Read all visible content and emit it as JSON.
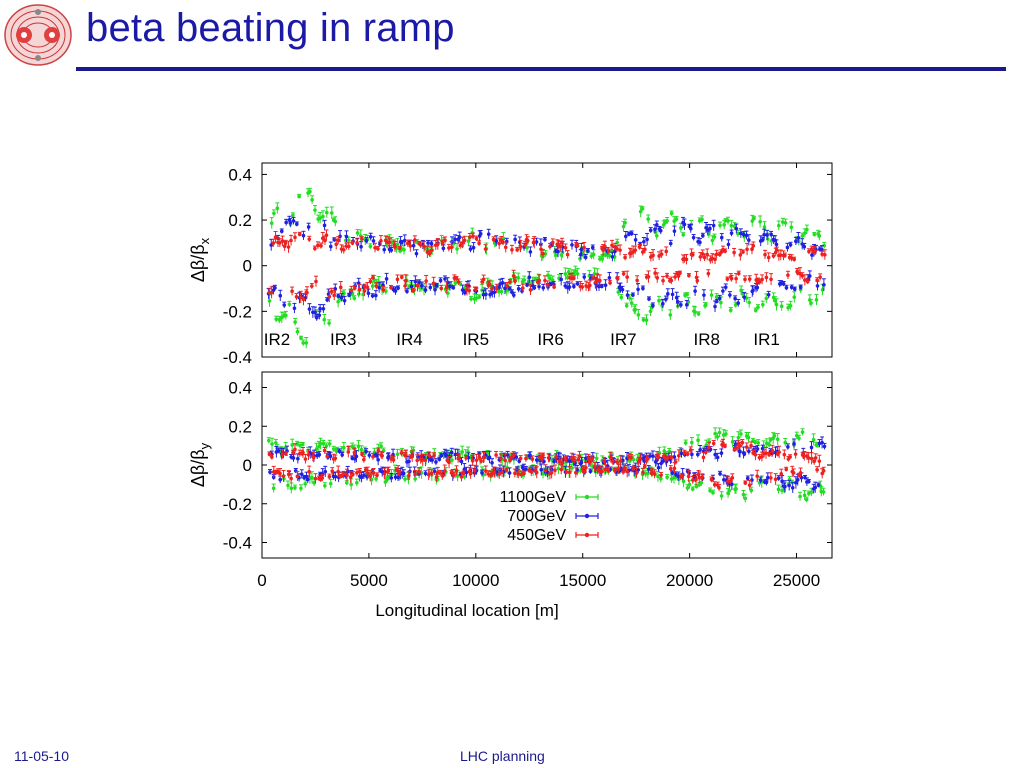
{
  "slide": {
    "title": "beta beating in ramp",
    "footer_left": "11-05-10",
    "footer_center": "LHC planning"
  },
  "colors": {
    "title": "#1a1aa6",
    "rule": "#1a1a8c",
    "series_1100": "#22dd22",
    "series_700": "#2020e0",
    "series_450": "#ee2020"
  },
  "chart_data": {
    "type": "scatter",
    "error_bars": true,
    "shared_x": {
      "label": "Longitudinal location [m]",
      "range": [
        0,
        26659
      ],
      "ticks": [
        0,
        5000,
        10000,
        15000,
        20000,
        25000
      ],
      "tick_labels": [
        "0",
        "5000",
        "10000",
        "15000",
        "20000",
        "25000"
      ]
    },
    "legend": {
      "placement": "bottom-center of lower panel",
      "entries": [
        "1100GeV",
        "700GeV",
        "450GeV"
      ]
    },
    "panels": [
      {
        "id": "x",
        "ylabel_main": "Δβ/β",
        "ylabel_sub": "x",
        "ylim": [
          -0.4,
          0.45
        ],
        "yticks": [
          -0.4,
          -0.2,
          0,
          0.2,
          0.4
        ],
        "ytick_labels": [
          "-0.4",
          "-0.2",
          "0",
          "0.2",
          "0.4"
        ],
        "annotations": [
          {
            "text": "IR2",
            "x": 700
          },
          {
            "text": "IR3",
            "x": 3800
          },
          {
            "text": "IR4",
            "x": 6900
          },
          {
            "text": "IR5",
            "x": 10000
          },
          {
            "text": "IR6",
            "x": 13500
          },
          {
            "text": "IR7",
            "x": 16900
          },
          {
            "text": "IR8",
            "x": 20800
          },
          {
            "text": "IR1",
            "x": 23600
          }
        ],
        "series": [
          {
            "name": "1100GeV",
            "envelope": [
              [
                0,
                0.08
              ],
              [
                500,
                0.22
              ],
              [
                1500,
                0.32
              ],
              [
                2500,
                0.36
              ],
              [
                3500,
                0.18
              ],
              [
                5000,
                0.12
              ],
              [
                7000,
                0.1
              ],
              [
                9000,
                0.11
              ],
              [
                10000,
                0.14
              ],
              [
                12000,
                0.09
              ],
              [
                13500,
                0.06
              ],
              [
                15000,
                0.05
              ],
              [
                16500,
                0.05
              ],
              [
                17000,
                0.25
              ],
              [
                19000,
                0.22
              ],
              [
                21000,
                0.19
              ],
              [
                23000,
                0.2
              ],
              [
                25000,
                0.18
              ],
              [
                26500,
                0.12
              ]
            ]
          },
          {
            "name": "700GeV",
            "envelope": [
              [
                0,
                0.12
              ],
              [
                1500,
                0.2
              ],
              [
                2500,
                0.22
              ],
              [
                3500,
                0.15
              ],
              [
                5000,
                0.12
              ],
              [
                7000,
                0.11
              ],
              [
                9000,
                0.11
              ],
              [
                10000,
                0.14
              ],
              [
                12000,
                0.12
              ],
              [
                13500,
                0.1
              ],
              [
                15000,
                0.08
              ],
              [
                16500,
                0.08
              ],
              [
                17000,
                0.14
              ],
              [
                19000,
                0.18
              ],
              [
                21000,
                0.17
              ],
              [
                23000,
                0.15
              ],
              [
                25000,
                0.11
              ],
              [
                26500,
                0.08
              ]
            ]
          },
          {
            "name": "450GeV",
            "envelope": [
              [
                0,
                0.1
              ],
              [
                1500,
                0.14
              ],
              [
                3500,
                0.12
              ],
              [
                5000,
                0.11
              ],
              [
                7000,
                0.1
              ],
              [
                9000,
                0.1
              ],
              [
                10000,
                0.12
              ],
              [
                12000,
                0.1
              ],
              [
                13500,
                0.1
              ],
              [
                15000,
                0.09
              ],
              [
                16500,
                0.08
              ],
              [
                17000,
                0.07
              ],
              [
                19000,
                0.06
              ],
              [
                21000,
                0.05
              ],
              [
                22500,
                0.08
              ],
              [
                24000,
                0.06
              ],
              [
                26500,
                0.06
              ]
            ]
          }
        ]
      },
      {
        "id": "y",
        "ylabel_main": "Δβ/β",
        "ylabel_sub": "y",
        "ylim": [
          -0.48,
          0.48
        ],
        "yticks": [
          -0.4,
          -0.2,
          0,
          0.2,
          0.4
        ],
        "ytick_labels": [
          "-0.4",
          "-0.2",
          "0",
          "0.2",
          "0.4"
        ],
        "annotations": [],
        "series": [
          {
            "name": "1100GeV",
            "envelope": [
              [
                0,
                0.12
              ],
              [
                1500,
                0.12
              ],
              [
                3500,
                0.1
              ],
              [
                5000,
                0.09
              ],
              [
                7000,
                0.07
              ],
              [
                9000,
                0.06
              ],
              [
                11000,
                0.05
              ],
              [
                13500,
                0.04
              ],
              [
                15000,
                0.03
              ],
              [
                17000,
                0.03
              ],
              [
                19000,
                0.07
              ],
              [
                20500,
                0.14
              ],
              [
                22000,
                0.18
              ],
              [
                23500,
                0.13
              ],
              [
                25000,
                0.16
              ],
              [
                26500,
                0.19
              ]
            ]
          },
          {
            "name": "700GeV",
            "envelope": [
              [
                0,
                0.06
              ],
              [
                1500,
                0.07
              ],
              [
                3500,
                0.06
              ],
              [
                5000,
                0.06
              ],
              [
                7000,
                0.05
              ],
              [
                9000,
                0.05
              ],
              [
                11000,
                0.04
              ],
              [
                13500,
                0.04
              ],
              [
                15000,
                0.03
              ],
              [
                17000,
                0.03
              ],
              [
                19000,
                0.04
              ],
              [
                20500,
                0.08
              ],
              [
                22000,
                0.1
              ],
              [
                23500,
                0.09
              ],
              [
                25000,
                0.11
              ],
              [
                26500,
                0.12
              ]
            ]
          },
          {
            "name": "450GeV",
            "envelope": [
              [
                0,
                0.05
              ],
              [
                1500,
                0.07
              ],
              [
                3500,
                0.06
              ],
              [
                5000,
                0.06
              ],
              [
                7000,
                0.05
              ],
              [
                9000,
                0.05
              ],
              [
                11000,
                0.04
              ],
              [
                13500,
                0.04
              ],
              [
                15000,
                0.03
              ],
              [
                17000,
                0.03
              ],
              [
                19000,
                0.04
              ],
              [
                20500,
                0.08
              ],
              [
                22000,
                0.13
              ],
              [
                23500,
                0.07
              ],
              [
                25000,
                0.05
              ],
              [
                26500,
                0.04
              ]
            ]
          }
        ]
      }
    ]
  }
}
